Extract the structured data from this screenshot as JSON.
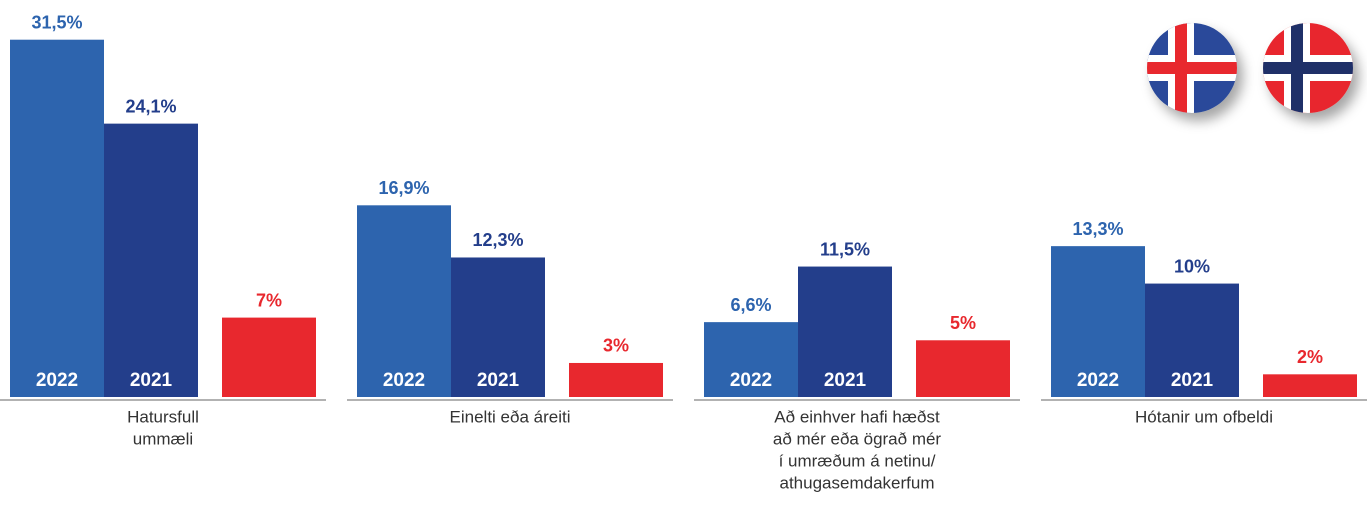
{
  "chart_data": {
    "type": "bar",
    "categories": [
      [
        "Hatursfull",
        "ummæli"
      ],
      [
        "Einelti eða áreiti"
      ],
      [
        "Að einhver hafi hæðst",
        "að mér eða ögrað mér",
        "í umræðum á netinu/",
        "athugasemdakerfum"
      ],
      [
        "Hótanir um ofbeldi"
      ]
    ],
    "series": [
      {
        "name": "2022",
        "color": "#2d64ae",
        "values": [
          31.5,
          16.9,
          6.6,
          13.3
        ],
        "value_labels": [
          "31,5%",
          "16,9%",
          "6,6%",
          "13,3%"
        ]
      },
      {
        "name": "2021",
        "color": "#233e8b",
        "values": [
          24.1,
          12.3,
          11.5,
          10
        ],
        "value_labels": [
          "24,1%",
          "12,3%",
          "11,5%",
          "10%"
        ]
      },
      {
        "color": "#e8282e",
        "values": [
          7,
          3,
          5,
          2
        ],
        "value_labels": [
          "7%",
          "3%",
          "5%",
          "2%"
        ]
      }
    ],
    "ylim": [
      0,
      35
    ]
  }
}
